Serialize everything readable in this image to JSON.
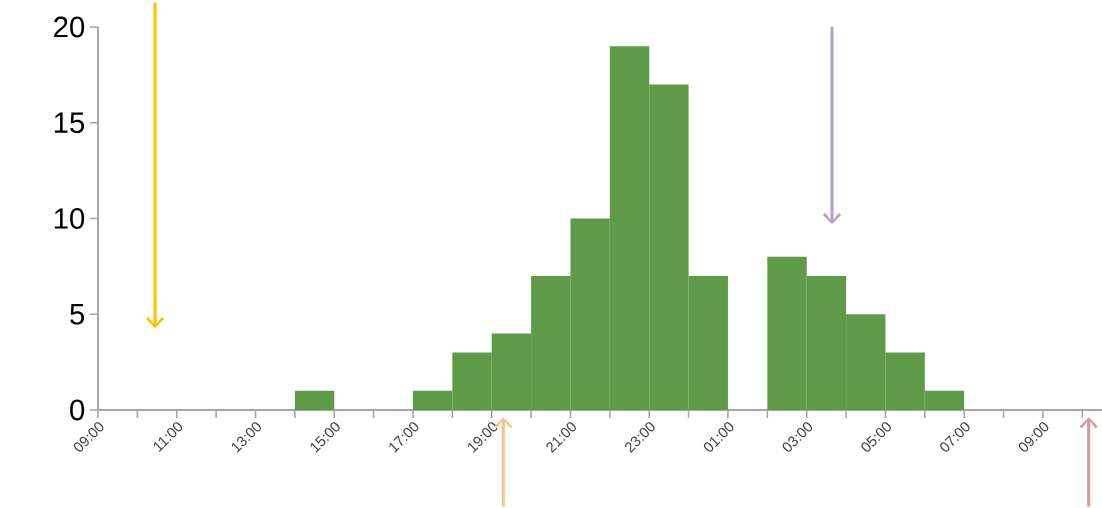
{
  "chart_data": {
    "type": "bar",
    "x": [
      "2000-01-01T09:30",
      "2000-01-01T10:30",
      "2000-01-01T11:30",
      "2000-01-01T12:30",
      "2000-01-01T13:30",
      "2000-01-01T14:30",
      "2000-01-01T15:30",
      "2000-01-01T16:30",
      "2000-01-01T17:30",
      "2000-01-01T18:30",
      "2000-01-01T19:30",
      "2000-01-01T20:30",
      "2000-01-01T21:30",
      "2000-01-01T22:30",
      "2000-01-01T23:30",
      "2000-01-02T00:30",
      "2000-01-02T01:30",
      "2000-01-02T02:30",
      "2000-01-02T03:30",
      "2000-01-02T04:30",
      "2000-01-02T05:30",
      "2000-01-02T06:30",
      "2000-01-02T07:30",
      "2000-01-02T08:30",
      "2000-01-02T09:30"
    ],
    "values": [
      0,
      0,
      0,
      0,
      0,
      1,
      0,
      0,
      1,
      3,
      4,
      7,
      10,
      19,
      17,
      7,
      0,
      8,
      7,
      5,
      3,
      1,
      0,
      0,
      0
    ],
    "color": "#5e9a48",
    "xlim": [
      "2000-01-01T09:00",
      "2000-01-02T10:30"
    ],
    "ylim": [
      0,
      20
    ],
    "yticks": [
      0,
      5,
      10,
      15,
      20
    ],
    "xticks": [
      {
        "value": "2000-01-01T09:00",
        "label": "09:00"
      },
      {
        "value": "2000-01-01T10:00",
        "label": null
      },
      {
        "value": "2000-01-01T11:00",
        "label": "11:00"
      },
      {
        "value": "2000-01-01T12:00",
        "label": null
      },
      {
        "value": "2000-01-01T13:00",
        "label": "13:00"
      },
      {
        "value": "2000-01-01T14:00",
        "label": null
      },
      {
        "value": "2000-01-01T15:00",
        "label": "15:00"
      },
      {
        "value": "2000-01-01T16:00",
        "label": null
      },
      {
        "value": "2000-01-01T17:00",
        "label": "17:00"
      },
      {
        "value": "2000-01-01T18:00",
        "label": null
      },
      {
        "value": "2000-01-01T19:00",
        "label": "19:00"
      },
      {
        "value": "2000-01-01T20:00",
        "label": null
      },
      {
        "value": "2000-01-01T21:00",
        "label": "21:00"
      },
      {
        "value": "2000-01-01T22:00",
        "label": null
      },
      {
        "value": "2000-01-01T23:00",
        "label": "23:00"
      },
      {
        "value": "2000-01-02T00:00",
        "label": null
      },
      {
        "value": "2000-01-02T01:00",
        "label": "01:00"
      },
      {
        "value": "2000-01-02T02:00",
        "label": null
      },
      {
        "value": "2000-01-02T03:00",
        "label": "03:00"
      },
      {
        "value": "2000-01-02T04:00",
        "label": null
      },
      {
        "value": "2000-01-02T05:00",
        "label": "05:00"
      },
      {
        "value": "2000-01-02T06:00",
        "label": null
      },
      {
        "value": "2000-01-02T07:00",
        "label": "07:00"
      },
      {
        "value": "2000-01-02T08:00",
        "label": null
      },
      {
        "value": "2000-01-02T09:00",
        "label": "09:00"
      },
      {
        "value": "2000-01-02T10:00",
        "label": null
      }
    ]
  }
}
